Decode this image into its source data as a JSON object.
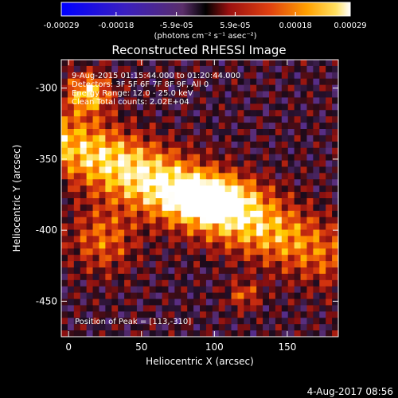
{
  "chart_data": {
    "type": "heatmap",
    "title": "Reconstructed RHESSI Image",
    "xlabel": "Heliocentric X (arcsec)",
    "ylabel": "Heliocentric Y (arcsec)",
    "xlim": [
      -5,
      185
    ],
    "ylim": [
      -475,
      -280
    ],
    "x_ticks": [
      0,
      50,
      100,
      150
    ],
    "y_ticks": [
      -300,
      -350,
      -400,
      -450
    ],
    "colorbar": {
      "range": [
        -0.00029,
        0.00029
      ],
      "tick_labels": [
        "-0.00029",
        "-0.00018",
        "-5.9e-05",
        "5.9e-05",
        "0.00018",
        "0.00029"
      ],
      "tick_values": [
        -0.00029,
        -0.00018,
        -5.9e-05,
        5.9e-05,
        0.00018,
        0.00029
      ],
      "units_label": "(photons cm⁻² s⁻¹ asec⁻²)"
    },
    "annotations": [
      "9-Aug-2015 01:15:44.000 to 01:20:44.000",
      "Detectors: 3F 5F 6F 7F 8F 9F, All 0",
      "Energy Range: 12.0 - 25.0 keV",
      "Clean    Total counts: 2.02E+04"
    ],
    "peak_label": "Position of Peak = [113,-310]",
    "peak": [
      113,
      -310
    ],
    "grid": false,
    "colormap": [
      "#0000ff",
      "#4b2aa8",
      "#5a2e7a",
      "#1a0a1a",
      "#8a1010",
      "#d03010",
      "#ff8000",
      "#ffd000",
      "#ffffff"
    ]
  },
  "footer": {
    "date": "4-Aug-2017 08:56"
  }
}
